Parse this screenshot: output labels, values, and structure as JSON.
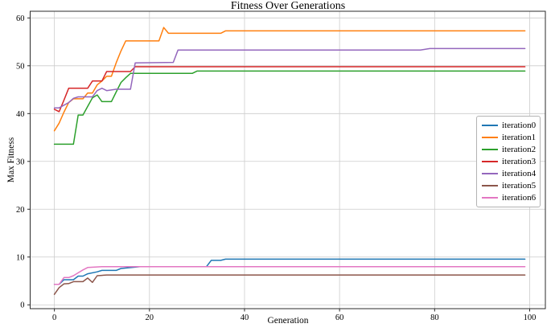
{
  "chart_data": {
    "type": "line",
    "title": "Fitness Over Generations",
    "xlabel": "Generation",
    "ylabel": "Max Fitness",
    "xlim": [
      -5.1,
      103.3
    ],
    "ylim": [
      -0.8,
      61.4
    ],
    "xticks": [
      0,
      20,
      40,
      60,
      80,
      100
    ],
    "yticks": [
      0,
      10,
      20,
      30,
      40,
      50,
      60
    ],
    "grid": true,
    "grid_color": "#cccccc",
    "spine_color": "#2b2b2b",
    "legend_position": "center right",
    "series": [
      {
        "name": "iteration0",
        "color": "#1f77b4",
        "points": [
          [
            0,
            4.3
          ],
          [
            1,
            4.3
          ],
          [
            2,
            5.25
          ],
          [
            4,
            5.25
          ],
          [
            5,
            6.0
          ],
          [
            6,
            6.0
          ],
          [
            7,
            6.5
          ],
          [
            9,
            6.9
          ],
          [
            10,
            7.2
          ],
          [
            13,
            7.2
          ],
          [
            14,
            7.6
          ],
          [
            18,
            8.0
          ],
          [
            32,
            8.0
          ],
          [
            33,
            9.3
          ],
          [
            35,
            9.3
          ],
          [
            36,
            9.55
          ],
          [
            99,
            9.55
          ]
        ]
      },
      {
        "name": "iteration1",
        "color": "#ff7f0e",
        "points": [
          [
            0,
            36.4
          ],
          [
            1,
            38.0
          ],
          [
            2,
            40.3
          ],
          [
            3,
            42.3
          ],
          [
            4,
            43.1
          ],
          [
            6,
            43.1
          ],
          [
            7,
            44.3
          ],
          [
            8,
            44.3
          ],
          [
            9,
            46.0
          ],
          [
            10,
            46.8
          ],
          [
            11,
            47.8
          ],
          [
            12,
            47.8
          ],
          [
            13,
            50.6
          ],
          [
            14,
            53.1
          ],
          [
            15,
            55.2
          ],
          [
            22,
            55.2
          ],
          [
            23,
            58.0
          ],
          [
            24,
            56.8
          ],
          [
            35,
            56.8
          ],
          [
            36,
            57.3
          ],
          [
            99,
            57.3
          ]
        ]
      },
      {
        "name": "iteration2",
        "color": "#2ca02c",
        "points": [
          [
            0,
            33.6
          ],
          [
            4,
            33.6
          ],
          [
            5,
            39.7
          ],
          [
            6,
            39.7
          ],
          [
            7,
            41.5
          ],
          [
            8,
            43.3
          ],
          [
            9,
            43.9
          ],
          [
            10,
            42.5
          ],
          [
            12,
            42.5
          ],
          [
            13,
            44.5
          ],
          [
            14,
            46.5
          ],
          [
            15,
            47.5
          ],
          [
            16,
            48.4
          ],
          [
            29,
            48.4
          ],
          [
            30,
            48.9
          ],
          [
            99,
            48.9
          ]
        ]
      },
      {
        "name": "iteration3",
        "color": "#d62728",
        "points": [
          [
            0,
            40.9
          ],
          [
            1,
            40.4
          ],
          [
            2,
            42.8
          ],
          [
            3,
            45.3
          ],
          [
            7,
            45.3
          ],
          [
            8,
            46.8
          ],
          [
            10,
            46.8
          ],
          [
            11,
            48.8
          ],
          [
            16,
            48.8
          ],
          [
            17,
            49.8
          ],
          [
            99,
            49.8
          ]
        ]
      },
      {
        "name": "iteration4",
        "color": "#9467bd",
        "points": [
          [
            0,
            41.2
          ],
          [
            1,
            41.2
          ],
          [
            3,
            42.3
          ],
          [
            4,
            43.2
          ],
          [
            5,
            43.5
          ],
          [
            8,
            43.5
          ],
          [
            9,
            44.8
          ],
          [
            10,
            45.3
          ],
          [
            11,
            44.8
          ],
          [
            13,
            45.1
          ],
          [
            16,
            45.1
          ],
          [
            17,
            50.6
          ],
          [
            25,
            50.7
          ],
          [
            26,
            53.3
          ],
          [
            77,
            53.3
          ],
          [
            79,
            53.6
          ],
          [
            99,
            53.6
          ]
        ]
      },
      {
        "name": "iteration5",
        "color": "#8c564b",
        "points": [
          [
            0,
            2.2
          ],
          [
            1,
            3.6
          ],
          [
            2,
            4.4
          ],
          [
            3,
            4.45
          ],
          [
            4,
            4.85
          ],
          [
            6,
            4.85
          ],
          [
            7,
            5.6
          ],
          [
            8,
            4.7
          ],
          [
            9,
            6.1
          ],
          [
            11,
            6.25
          ],
          [
            99,
            6.25
          ]
        ]
      },
      {
        "name": "iteration6",
        "color": "#e377c2",
        "points": [
          [
            0,
            4.3
          ],
          [
            1,
            4.3
          ],
          [
            2,
            5.7
          ],
          [
            3,
            5.7
          ],
          [
            4,
            6.1
          ],
          [
            5,
            6.7
          ],
          [
            6,
            7.3
          ],
          [
            7,
            7.8
          ],
          [
            10,
            8.0
          ],
          [
            99,
            8.0
          ]
        ]
      }
    ]
  }
}
